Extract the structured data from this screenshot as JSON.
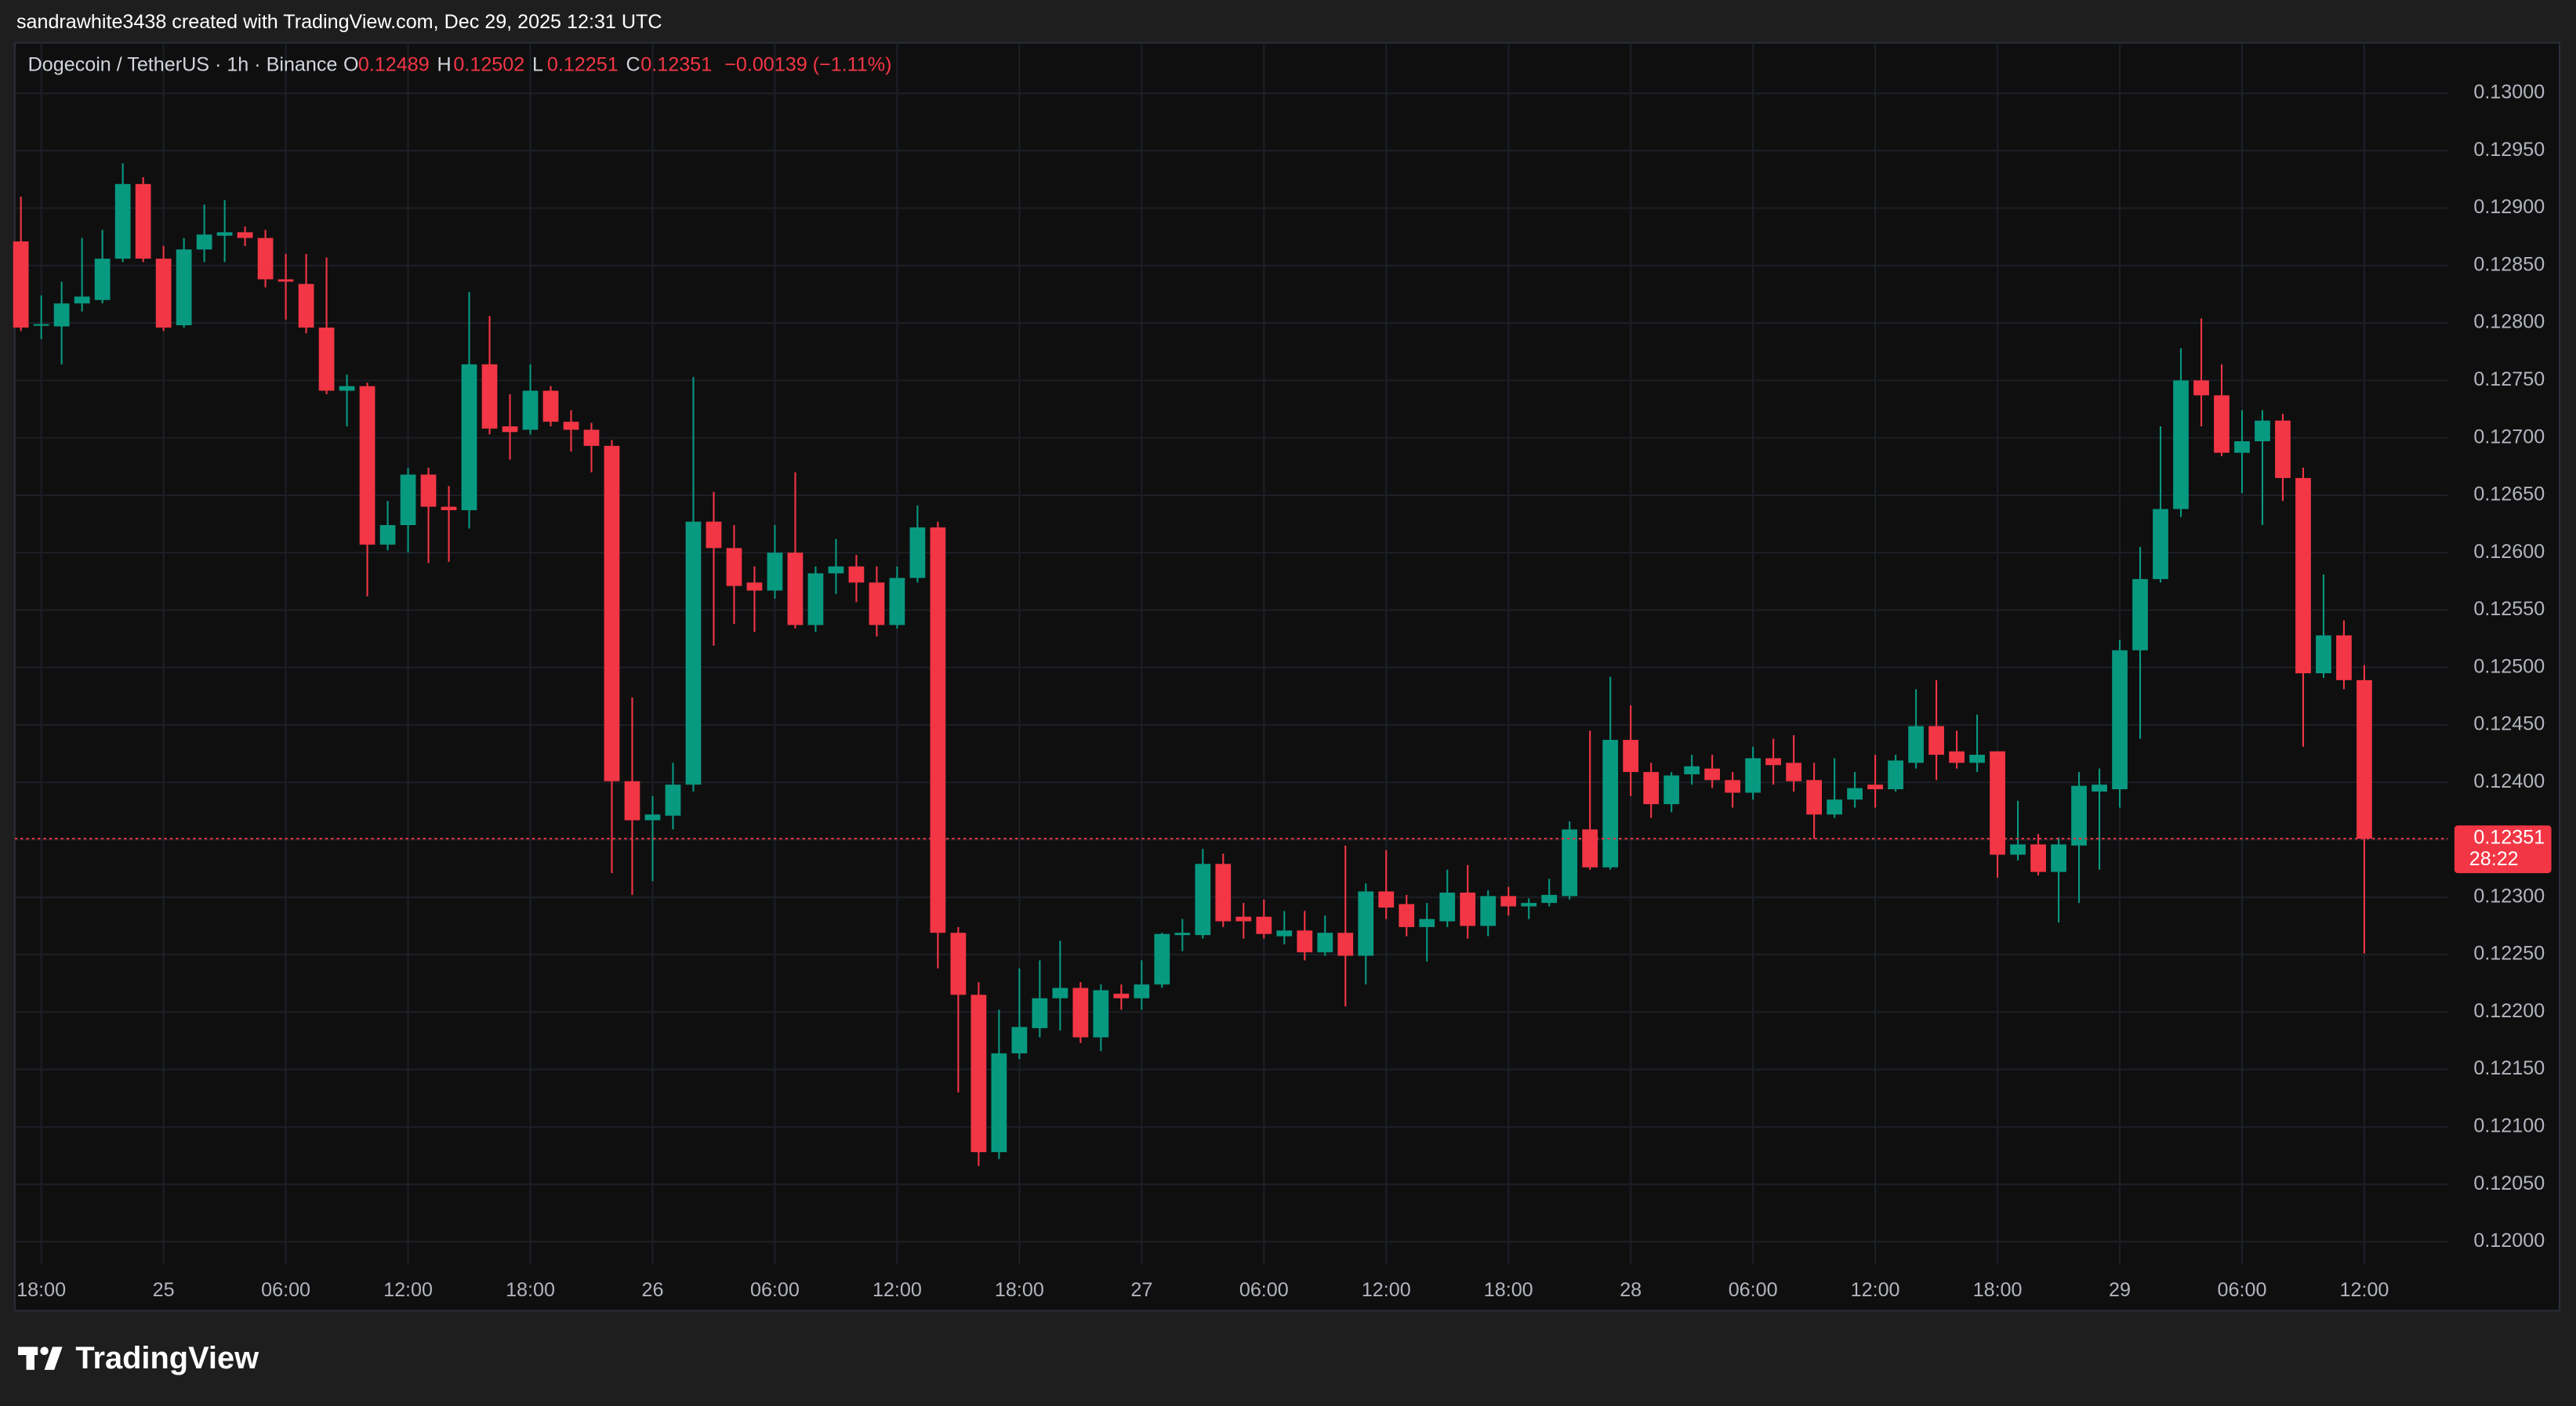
{
  "credit": "sandrawhite3438 created with TradingView.com, Dec 29, 2025 12:31 UTC",
  "brand": "TradingView",
  "chart_data": {
    "type": "candlestick",
    "symbol": "Dogecoin / TetherUS · 1h · Binance",
    "legend_labels": [
      "O",
      "H",
      "L",
      "C"
    ],
    "change": "−0.00139 (−1.11%)",
    "countdown": "28:22",
    "up_color": "#089981",
    "down_color": "#f23645",
    "grid": true,
    "open": [
      0.12871,
      0.12798,
      0.12797,
      0.12817,
      0.1282,
      0.12856,
      0.12921,
      0.12856,
      0.12798,
      0.12864,
      0.12876,
      0.12879,
      0.12874,
      0.12838,
      0.12834,
      0.12796,
      0.12741,
      0.12745,
      0.12607,
      0.12624,
      0.12668,
      0.1264,
      0.12637,
      0.12764,
      0.1271,
      0.12707,
      0.12741,
      0.12714,
      0.12707,
      0.12693,
      0.12401,
      0.12367,
      0.12371,
      0.12398,
      0.12627,
      0.12604,
      0.12574,
      0.12567,
      0.126,
      0.12537,
      0.12582,
      0.12588,
      0.12574,
      0.12537,
      0.12578,
      0.12622,
      0.12269,
      0.12215,
      0.12078,
      0.12164,
      0.12186,
      0.12212,
      0.12221,
      0.12178,
      0.12216,
      0.12212,
      0.12224,
      0.12267,
      0.12267,
      0.12329,
      0.12283,
      0.12283,
      0.12266,
      0.12271,
      0.12252,
      0.12269,
      0.12249,
      0.12305,
      0.12294,
      0.12274,
      0.12279,
      0.12304,
      0.12275,
      0.12301,
      0.12292,
      0.12295,
      0.12301,
      0.12359,
      0.12326,
      0.12437,
      0.12409,
      0.12381,
      0.12407,
      0.12412,
      0.12402,
      0.12391,
      0.12421,
      0.12417,
      0.12402,
      0.12372,
      0.12385,
      0.12398,
      0.12394,
      0.12417,
      0.12449,
      0.12427,
      0.12417,
      0.12427,
      0.12337,
      0.12346,
      0.12322,
      0.12345,
      0.12392,
      0.12394,
      0.12515,
      0.12577,
      0.12638,
      0.1275,
      0.12737,
      0.12687,
      0.12697,
      0.12715,
      0.12665,
      0.12495,
      0.12528,
      0.12489
    ],
    "high": [
      0.1291,
      0.12824,
      0.12836,
      0.12874,
      0.12881,
      0.12939,
      0.12927,
      0.12867,
      0.12874,
      0.12903,
      0.12907,
      0.12884,
      0.12881,
      0.1286,
      0.1286,
      0.12857,
      0.12755,
      0.12748,
      0.12645,
      0.12674,
      0.12674,
      0.12658,
      0.12827,
      0.12806,
      0.12738,
      0.12764,
      0.12745,
      0.12724,
      0.12713,
      0.12698,
      0.12474,
      0.12388,
      0.12417,
      0.12753,
      0.12653,
      0.12624,
      0.12588,
      0.12624,
      0.1267,
      0.12588,
      0.12612,
      0.12598,
      0.12588,
      0.12588,
      0.12641,
      0.12627,
      0.12274,
      0.12226,
      0.12202,
      0.12238,
      0.12245,
      0.12262,
      0.12226,
      0.12224,
      0.12224,
      0.12245,
      0.12269,
      0.12281,
      0.12342,
      0.12338,
      0.12295,
      0.12298,
      0.12288,
      0.12288,
      0.12284,
      0.12345,
      0.12312,
      0.12341,
      0.12302,
      0.12295,
      0.12324,
      0.12328,
      0.12306,
      0.12309,
      0.12299,
      0.12316,
      0.12366,
      0.12445,
      0.12492,
      0.12467,
      0.12417,
      0.12409,
      0.12424,
      0.12424,
      0.12409,
      0.12431,
      0.12438,
      0.12441,
      0.12417,
      0.12421,
      0.12409,
      0.12424,
      0.12424,
      0.12481,
      0.12489,
      0.12445,
      0.12459,
      0.12427,
      0.12384,
      0.12355,
      0.12352,
      0.12409,
      0.12412,
      0.12524,
      0.12605,
      0.1271,
      0.12778,
      0.12804,
      0.12764,
      0.12724,
      0.12724,
      0.12721,
      0.12674,
      0.12581,
      0.12541,
      0.12502
    ],
    "low": [
      0.12793,
      0.12786,
      0.12764,
      0.1281,
      0.12817,
      0.12853,
      0.12853,
      0.12793,
      0.12796,
      0.12853,
      0.12853,
      0.12867,
      0.12831,
      0.12803,
      0.12791,
      0.12738,
      0.1271,
      0.12562,
      0.12602,
      0.126,
      0.12591,
      0.12592,
      0.12621,
      0.12703,
      0.12681,
      0.12703,
      0.1271,
      0.12688,
      0.1267,
      0.12321,
      0.12302,
      0.12314,
      0.12359,
      0.12392,
      0.12519,
      0.12538,
      0.12531,
      0.1256,
      0.12534,
      0.12531,
      0.12564,
      0.12557,
      0.12527,
      0.12534,
      0.12574,
      0.12238,
      0.1213,
      0.12066,
      0.12072,
      0.12159,
      0.12178,
      0.12184,
      0.12173,
      0.12166,
      0.12202,
      0.12202,
      0.12221,
      0.12253,
      0.12264,
      0.12274,
      0.12264,
      0.12264,
      0.12259,
      0.12245,
      0.12249,
      0.12205,
      0.12224,
      0.12281,
      0.12266,
      0.12244,
      0.12274,
      0.12264,
      0.12266,
      0.12284,
      0.12281,
      0.12292,
      0.12298,
      0.12324,
      0.12324,
      0.12388,
      0.12369,
      0.12374,
      0.12398,
      0.12395,
      0.12378,
      0.12385,
      0.12398,
      0.12392,
      0.12351,
      0.12369,
      0.12378,
      0.12378,
      0.12392,
      0.12412,
      0.12402,
      0.12412,
      0.12409,
      0.12317,
      0.12332,
      0.12319,
      0.12278,
      0.12295,
      0.12324,
      0.12378,
      0.12438,
      0.12574,
      0.12631,
      0.1271,
      0.12684,
      0.12652,
      0.12624,
      0.12645,
      0.12431,
      0.12491,
      0.12481,
      0.12251
    ],
    "close": [
      0.12796,
      0.12799,
      0.12817,
      0.12823,
      0.12856,
      0.12921,
      0.12856,
      0.12796,
      0.12864,
      0.12877,
      0.12879,
      0.12874,
      0.12838,
      0.12836,
      0.12796,
      0.12741,
      0.12745,
      0.12607,
      0.12624,
      0.12668,
      0.1264,
      0.12637,
      0.12764,
      0.12708,
      0.12705,
      0.12741,
      0.12714,
      0.12707,
      0.12693,
      0.12401,
      0.12367,
      0.12372,
      0.12398,
      0.12627,
      0.12604,
      0.12571,
      0.12567,
      0.126,
      0.12537,
      0.12582,
      0.12588,
      0.12574,
      0.12537,
      0.12578,
      0.12622,
      0.12269,
      0.12215,
      0.12078,
      0.12164,
      0.12187,
      0.12212,
      0.12221,
      0.12178,
      0.12219,
      0.12212,
      0.12224,
      0.12268,
      0.12269,
      0.12329,
      0.12279,
      0.12279,
      0.12268,
      0.12271,
      0.12252,
      0.12269,
      0.12249,
      0.12305,
      0.12291,
      0.12274,
      0.12281,
      0.12304,
      0.12275,
      0.12301,
      0.12292,
      0.12295,
      0.12302,
      0.12359,
      0.12326,
      0.12437,
      0.12409,
      0.12381,
      0.12406,
      0.12414,
      0.12402,
      0.12391,
      0.12421,
      0.12415,
      0.12401,
      0.12372,
      0.12385,
      0.12395,
      0.12394,
      0.12419,
      0.12449,
      0.12424,
      0.12417,
      0.12424,
      0.12337,
      0.12346,
      0.12322,
      0.12346,
      0.12397,
      0.12398,
      0.12515,
      0.12577,
      0.12638,
      0.1275,
      0.12737,
      0.12687,
      0.12697,
      0.12715,
      0.12665,
      0.12495,
      0.12528,
      0.12489,
      0.12351
    ],
    "xlim": [
      -0.3,
      119.1
    ],
    "xticks": [
      {
        "value": 1,
        "label": "18:00"
      },
      {
        "value": 7,
        "label": "25"
      },
      {
        "value": 13,
        "label": "06:00"
      },
      {
        "value": 19,
        "label": "12:00"
      },
      {
        "value": 25,
        "label": "18:00"
      },
      {
        "value": 31,
        "label": "26"
      },
      {
        "value": 37,
        "label": "06:00"
      },
      {
        "value": 43,
        "label": "12:00"
      },
      {
        "value": 49,
        "label": "18:00"
      },
      {
        "value": 55,
        "label": "27"
      },
      {
        "value": 61,
        "label": "06:00"
      },
      {
        "value": 67,
        "label": "12:00"
      },
      {
        "value": 73,
        "label": "18:00"
      },
      {
        "value": 79,
        "label": "28"
      },
      {
        "value": 85,
        "label": "06:00"
      },
      {
        "value": 91,
        "label": "12:00"
      },
      {
        "value": 97,
        "label": "18:00"
      },
      {
        "value": 103,
        "label": "29"
      },
      {
        "value": 109,
        "label": "06:00"
      },
      {
        "value": 115,
        "label": "12:00"
      }
    ],
    "ylim": [
      0.1198,
      0.13044
    ],
    "yticks": [
      {
        "value": 0.12,
        "label": "0.12000"
      },
      {
        "value": 0.1205,
        "label": "0.12050"
      },
      {
        "value": 0.121,
        "label": "0.12100"
      },
      {
        "value": 0.1215,
        "label": "0.12150"
      },
      {
        "value": 0.122,
        "label": "0.12200"
      },
      {
        "value": 0.1225,
        "label": "0.12250"
      },
      {
        "value": 0.123,
        "label": "0.12300"
      },
      {
        "value": 0.1235,
        "label": "0.12350"
      },
      {
        "value": 0.124,
        "label": "0.12400"
      },
      {
        "value": 0.1245,
        "label": "0.12450"
      },
      {
        "value": 0.125,
        "label": "0.12500"
      },
      {
        "value": 0.1255,
        "label": "0.12550"
      },
      {
        "value": 0.126,
        "label": "0.12600"
      },
      {
        "value": 0.1265,
        "label": "0.12650"
      },
      {
        "value": 0.127,
        "label": "0.12700"
      },
      {
        "value": 0.1275,
        "label": "0.12750"
      },
      {
        "value": 0.128,
        "label": "0.12800"
      },
      {
        "value": 0.1285,
        "label": "0.12850"
      },
      {
        "value": 0.129,
        "label": "0.12900"
      },
      {
        "value": 0.1295,
        "label": "0.12950"
      },
      {
        "value": 0.13,
        "label": "0.13000"
      }
    ]
  }
}
